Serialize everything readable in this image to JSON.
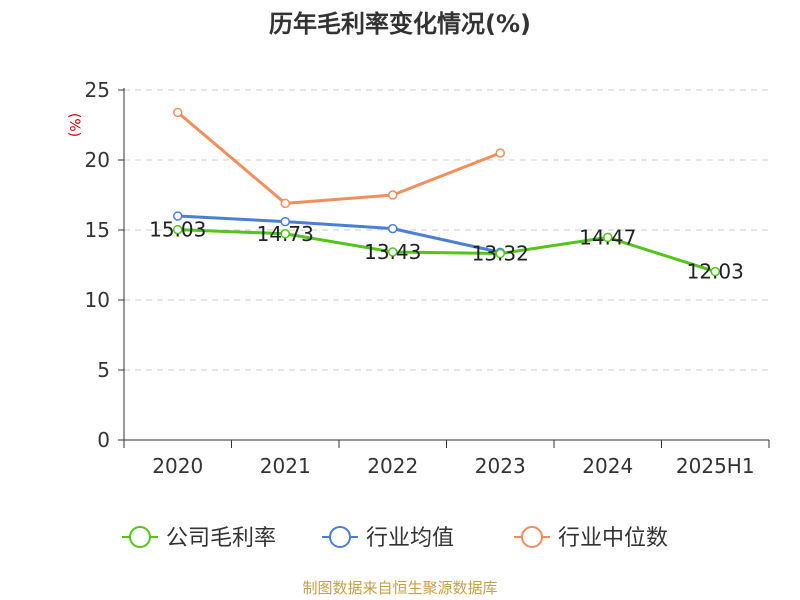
{
  "chart_data": {
    "type": "line",
    "title": "历年毛利率变化情况(%)",
    "xlabel": "",
    "ylabel": "(%)",
    "categories": [
      "2020",
      "2021",
      "2022",
      "2023",
      "2024",
      "2025H1"
    ],
    "ylim": [
      0,
      25
    ],
    "yticks": [
      0,
      5,
      10,
      15,
      20,
      25
    ],
    "grid": true,
    "legend_position": "bottom",
    "series": [
      {
        "name": "公司毛利率",
        "color": "#52c41a",
        "values": [
          15.03,
          14.73,
          13.43,
          13.32,
          14.47,
          12.03
        ],
        "show_labels": true
      },
      {
        "name": "行业均值",
        "color": "#4a7fd6",
        "values": [
          16.0,
          15.6,
          15.1,
          13.4,
          null,
          null
        ],
        "show_labels": false
      },
      {
        "name": "行业中位数",
        "color": "#f28e5c",
        "values": [
          23.4,
          16.9,
          17.5,
          20.5,
          null,
          null
        ],
        "show_labels": false
      }
    ]
  },
  "source": "制图数据来自恒生聚源数据库",
  "colors": {
    "axis": "#333333",
    "grid": "#cccccc",
    "ylabel": "#cc0000",
    "source": "#c8a046"
  }
}
